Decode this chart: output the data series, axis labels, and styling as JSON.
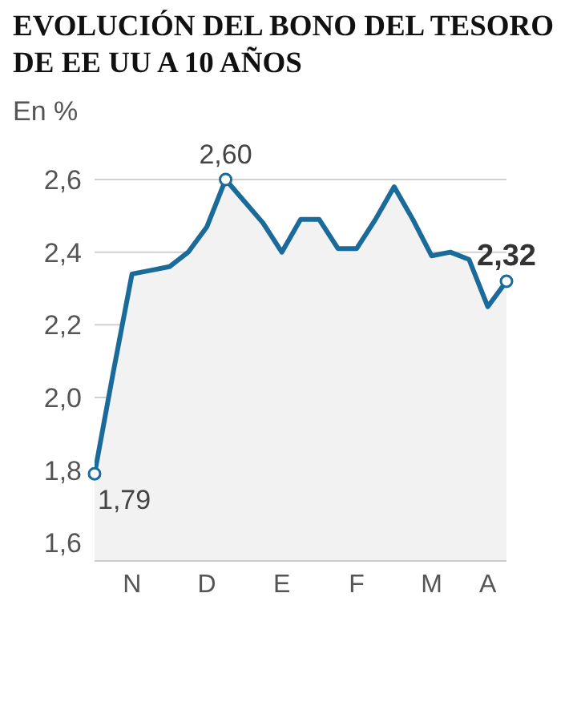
{
  "chart_data": {
    "type": "area",
    "title": "EVOLUCIÓN DEL BONO DEL TESORO DE EE UU A 10 AÑOS",
    "ylabel": "En %",
    "categories": [
      null,
      null,
      "N",
      null,
      null,
      null,
      "D",
      null,
      null,
      null,
      "E",
      null,
      null,
      null,
      "F",
      null,
      null,
      null,
      "M",
      null,
      null,
      "A",
      null
    ],
    "series": [
      {
        "color": "#1a6b9a",
        "values": [
          1.79,
          2.07,
          2.34,
          2.35,
          2.36,
          2.4,
          2.47,
          2.6,
          2.54,
          2.48,
          2.4,
          2.49,
          2.49,
          2.41,
          2.41,
          2.49,
          2.58,
          2.49,
          2.39,
          2.4,
          2.38,
          2.25,
          2.32
        ],
        "value_labels": [
          "1,79",
          null,
          null,
          null,
          null,
          null,
          null,
          "2,60",
          null,
          null,
          null,
          null,
          null,
          null,
          null,
          null,
          null,
          null,
          null,
          null,
          null,
          null,
          "2,32"
        ]
      }
    ],
    "ylim": [
      1.55,
      2.6
    ],
    "yticks": [
      {
        "value": 1.6,
        "label": "1,6"
      },
      {
        "value": 1.8,
        "label": "1,8"
      },
      {
        "value": 2.0,
        "label": "2,0"
      },
      {
        "value": 2.2,
        "label": "2,2"
      },
      {
        "value": 2.4,
        "label": "2,4"
      },
      {
        "value": 2.6,
        "label": "2,6"
      }
    ],
    "grid": "y",
    "line_style": "solid"
  }
}
